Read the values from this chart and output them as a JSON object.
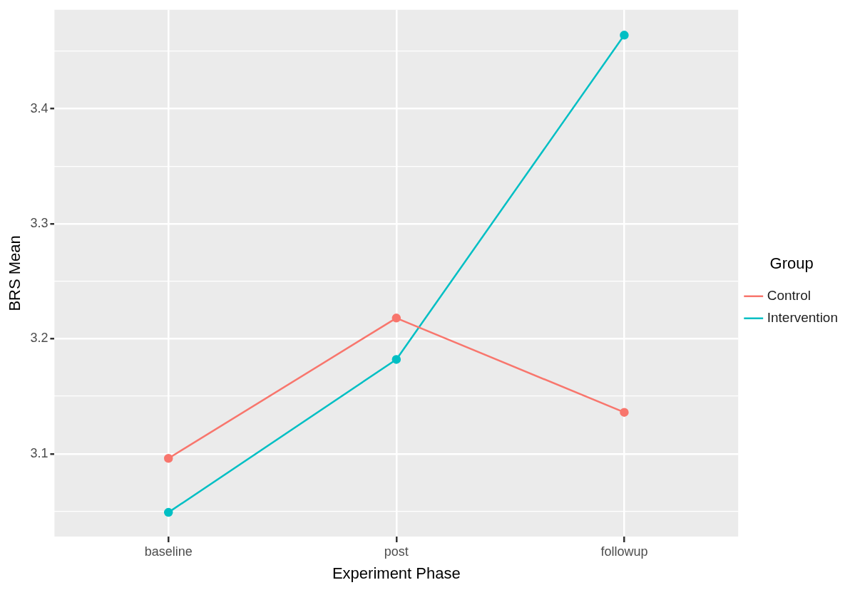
{
  "chart_data": {
    "type": "line",
    "xlabel": "Experiment Phase",
    "ylabel": "BRS Mean",
    "legend_title": "Group",
    "categories": [
      "baseline",
      "post",
      "followup"
    ],
    "series": [
      {
        "name": "Control",
        "color": "#f8766d",
        "values": [
          3.096,
          3.218,
          3.136
        ]
      },
      {
        "name": "Intervention",
        "color": "#00bfc4",
        "values": [
          3.049,
          3.182,
          3.464
        ]
      }
    ],
    "ylim": [
      3.028,
      3.486
    ],
    "yticks": [
      {
        "value": 3.05,
        "label": null
      },
      3.1,
      {
        "value": 3.15,
        "label": null
      },
      3.2,
      {
        "value": 3.25,
        "label": null
      },
      3.3,
      {
        "value": 3.35,
        "label": null
      },
      3.4,
      {
        "value": 3.45,
        "label": null
      }
    ],
    "grid": true,
    "legend": "right",
    "marker": "circle",
    "line_style": "solid"
  }
}
